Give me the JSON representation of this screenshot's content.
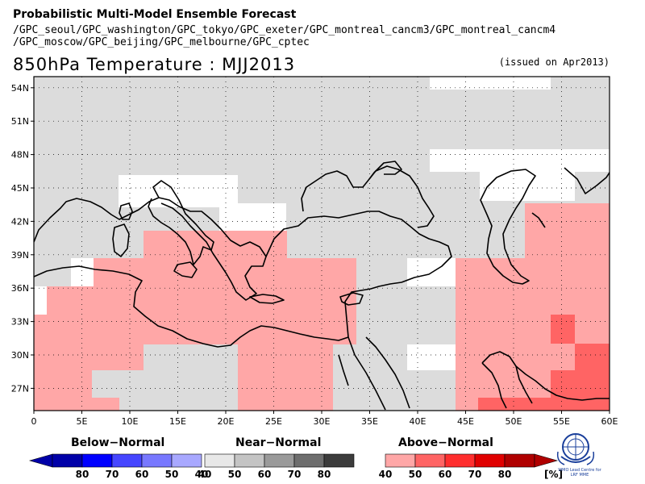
{
  "header": {
    "title": "Probabilistic Multi-Model Ensemble Forecast",
    "models_line1": "/GPC_seoul/GPC_washington/GPC_tokyo/GPC_exeter/GPC_montreal_cancm3/GPC_montreal_cancm4",
    "models_line2": "/GPC_moscow/GPC_beijing/GPC_melbourne/GPC_cptec",
    "map_title": "850hPa Temperature : MJJ2013",
    "issued": "(issued on Apr2013)"
  },
  "map": {
    "lat_labels": [
      "54N",
      "51N",
      "48N",
      "45N",
      "42N",
      "39N",
      "36N",
      "33N",
      "30N",
      "27N"
    ],
    "lon_labels": [
      "0",
      "5E",
      "10E",
      "15E",
      "20E",
      "25E",
      "30E",
      "35E",
      "40E",
      "45E",
      "50E",
      "55E",
      "60E"
    ],
    "lon_range": [
      0,
      60
    ],
    "lat_range": [
      25,
      55
    ],
    "grid": "dotted",
    "colors": {
      "near_normal_gray": "#dcdcdc",
      "above_40": "#ffa7a7",
      "above_50": "#ff6464",
      "no_signal": "#ffffff"
    }
  },
  "legend": {
    "below": {
      "title": "Below−Normal",
      "labels": [
        "80",
        "70",
        "60",
        "50",
        "40"
      ],
      "colors": [
        "#0000a8",
        "#0000ff",
        "#4646ff",
        "#7878ff",
        "#a8a8ff"
      ]
    },
    "near": {
      "title": "Near−Normal",
      "labels": [
        "40",
        "50",
        "60",
        "70",
        "80"
      ],
      "colors": [
        "#e8e8e8",
        "#c4c4c4",
        "#9a9a9a",
        "#6e6e6e",
        "#3c3c3c"
      ]
    },
    "above": {
      "title": "Above−Normal",
      "labels": [
        "40",
        "50",
        "60",
        "70",
        "80"
      ],
      "colors": [
        "#ffa7a7",
        "#ff6464",
        "#ff2e2e",
        "#e00000",
        "#b00000"
      ],
      "unit": "[%]"
    }
  },
  "logo": {
    "text": "WMO Lead Centre for LRF MME"
  }
}
